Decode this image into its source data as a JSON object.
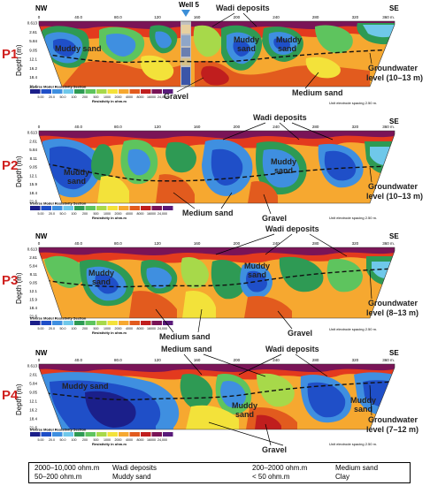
{
  "panels": [
    {
      "id": "P1",
      "nw": "NW",
      "se": "SE",
      "well": "Well 5",
      "xticks": [
        "0",
        "40.0",
        "80.0",
        "120",
        "160",
        "200",
        "240",
        "280",
        "320",
        "360 m."
      ],
      "depth_ticks": [
        "0.613",
        "2.61",
        "5.84",
        "9.05",
        "12.1",
        "16.2",
        "18.4",
        "21.6"
      ],
      "labels": {
        "muddy_sand_a": "Muddy sand",
        "muddy_sand_b": "Muddy",
        "muddy_sand_c": "sand",
        "muddy_sand_d": "Muddy",
        "muddy_sand_e": "sand",
        "wadi": "Wadi deposits",
        "gravel": "Gravel",
        "medium_sand": "Medium sand",
        "gw1": "Groundwater",
        "gw2": "level (10–13 m)"
      },
      "unit_note": "Unit electrode spacing 2.50 m."
    },
    {
      "id": "P2",
      "se": "SE",
      "xticks": [
        "0",
        "40.0",
        "80.0",
        "120",
        "160",
        "200",
        "240",
        "280",
        "320",
        "360 m."
      ],
      "depth_ticks": [
        "0.613",
        "2.61",
        "5.84",
        "8.11",
        "9.05",
        "12.1",
        "15.9",
        "18.4",
        "21.6"
      ],
      "labels": {
        "muddy_sand_a": "Muddy",
        "muddy_sand_b": "sand",
        "muddy_sand_c": "Muddy",
        "muddy_sand_d": "sand",
        "wadi": "Wadi deposits",
        "medium_sand": "Medium sand",
        "gravel": "Gravel",
        "gw1": "Groundwater",
        "gw2": "level (10–13 m)"
      },
      "unit_note": "Unit electrode spacing 2.50 m."
    },
    {
      "id": "P3",
      "nw": "NW",
      "se": "SE",
      "xticks": [
        "0",
        "40.0",
        "80.0",
        "120",
        "160",
        "200",
        "240",
        "280",
        "320",
        "360 m."
      ],
      "depth_ticks": [
        "0.613",
        "2.61",
        "5.84",
        "8.11",
        "9.05",
        "12.1",
        "15.9",
        "18.4",
        "21.6"
      ],
      "labels": {
        "muddy_sand_a": "Muddy",
        "muddy_sand_b": "sand",
        "muddy_sand_c": "Muddy",
        "muddy_sand_d": "sand",
        "wadi": "Wadi deposits",
        "medium_sand": "Medium sand",
        "gravel": "Gravel",
        "gw1": "Groundwater",
        "gw2": "level (8–13 m)"
      },
      "unit_note": "Unit electrode spacing 2.50 m."
    },
    {
      "id": "P4",
      "nw": "NW",
      "se": "SE",
      "xticks": [
        "0",
        "40.0",
        "80.0",
        "120",
        "160",
        "200",
        "240",
        "280",
        "320",
        "360 m."
      ],
      "depth_ticks": [
        "0.613",
        "2.61",
        "5.84",
        "9.05",
        "12.1",
        "16.2",
        "18.4",
        "21.6"
      ],
      "labels": {
        "muddy_sand_a": "Muddy sand",
        "muddy_sand_b": "Muddy",
        "muddy_sand_c": "sand",
        "muddy_sand_d": "Muddy",
        "muddy_sand_e": "sand",
        "medium_sand": "Medium sand",
        "wadi": "Wadi deposits",
        "gravel": "Gravel",
        "gw1": "Groundwater",
        "gw2": "level (7–12 m)"
      },
      "unit_note": "Unit electrode spacing 2.50 m."
    }
  ],
  "depth_axis_label": "Depth (m)",
  "colorbar": {
    "title": "Inverse Model Resistivity Section",
    "values": [
      "5.00",
      "20.0",
      "50.0",
      "100",
      "200",
      "500",
      "1000",
      "2000",
      "4000",
      "8000",
      "16000",
      "24,000"
    ],
    "unit_label": "Resistivity in ohm.m",
    "colors": [
      "#1b1f8a",
      "#1f4fc8",
      "#3f8fe0",
      "#6fc8ea",
      "#2e9a54",
      "#5ec45e",
      "#a7d94a",
      "#f3e23a",
      "#f6a830",
      "#e25b1e",
      "#c01e1e",
      "#7a1457",
      "#5a1b7a"
    ]
  },
  "legend": {
    "r1c1": "2000–10,000 ohm.m",
    "r1c2": "Wadi deposits",
    "r1c3": "200–2000 ohm.m",
    "r1c4": "Medium sand",
    "r2c1": "50–200 ohm.m",
    "r2c2": "Muddy sand",
    "r2c3": "< 50 ohm.m",
    "r2c4": "Clay"
  }
}
